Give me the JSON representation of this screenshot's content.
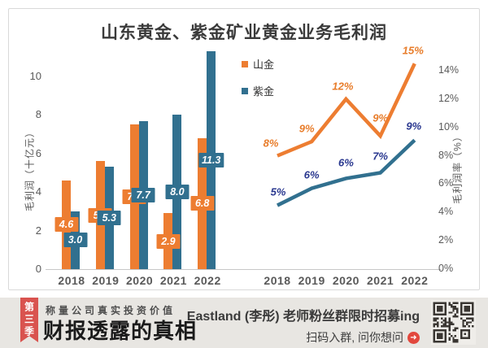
{
  "figure": {
    "title": "山东黄金、紫金矿业黄金业务毛利润"
  },
  "colors": {
    "shanjin_orange": "#ED7D31",
    "zijin_blue": "#31708F",
    "orange_label_text": "#E87D2B",
    "navy_label_text": "#2B3990",
    "axis_text": "#595959",
    "ribbon_red": "#D9534F",
    "arrow_red": "#E2483D",
    "banner_bg": "#E8E6E2"
  },
  "legend": {
    "items": [
      {
        "label": "山金",
        "color": "#ED7D31"
      },
      {
        "label": "紫金",
        "color": "#31708F"
      }
    ]
  },
  "chart_data": [
    {
      "type": "bar",
      "title": "山东黄金、紫金矿业黄金业务毛利润",
      "categories": [
        "2018",
        "2019",
        "2020",
        "2021",
        "2022"
      ],
      "series": [
        {
          "name": "山金",
          "color": "#ED7D31",
          "values": [
            4.6,
            5.6,
            7.5,
            2.9,
            6.8
          ],
          "labels": [
            "4.6",
            "5.6",
            "7.5",
            "2.9",
            "6.8"
          ]
        },
        {
          "name": "紫金",
          "color": "#31708F",
          "values": [
            3.0,
            5.3,
            7.7,
            8.0,
            11.3
          ],
          "labels": [
            "3.0",
            "5.3",
            "7.7",
            "8.0",
            "11.3"
          ]
        }
      ],
      "xlabel": "",
      "ylabel": "毛利润（十亿元）",
      "yticks": [
        0,
        2,
        4,
        6,
        8,
        10
      ],
      "ylim": [
        0,
        11.4
      ],
      "grid": false,
      "legend_position": "top-right-of-plot"
    },
    {
      "type": "line",
      "title": "",
      "categories": [
        "2018",
        "2019",
        "2020",
        "2021",
        "2022"
      ],
      "series": [
        {
          "name": "山金",
          "color": "#ED7D31",
          "values": [
            8,
            9,
            12,
            9,
            15
          ],
          "drawn": [
            8,
            9,
            12,
            9.4,
            14.5
          ],
          "labels": [
            "8%",
            "9%",
            "12%",
            "9%",
            "15%"
          ]
        },
        {
          "name": "紫金",
          "color": "#31708F",
          "values": [
            5,
            6,
            6,
            7,
            9
          ],
          "drawn": [
            4.5,
            5.7,
            6.4,
            6.8,
            9.1
          ],
          "labels": [
            "5%",
            "6%",
            "6%",
            "7%",
            "9%"
          ]
        }
      ],
      "xlabel": "",
      "ylabel": "毛利润率（%）",
      "yticks": [
        "0%",
        "2%",
        "4%",
        "6%",
        "8%",
        "10%",
        "12%",
        "14%"
      ],
      "ylim": [
        0,
        14
      ],
      "grid": false
    }
  ],
  "banner": {
    "ribbon_text": "第三季",
    "tagline": "称量公司真实投资价值",
    "brand": "财报透露的真相",
    "promo_line1": "Eastland (李彤) 老师粉丝群限时招募ing",
    "promo_line2": "扫码入群, 问你想问",
    "arrow_icon_glyph": "➜",
    "qr": "qr-code"
  }
}
